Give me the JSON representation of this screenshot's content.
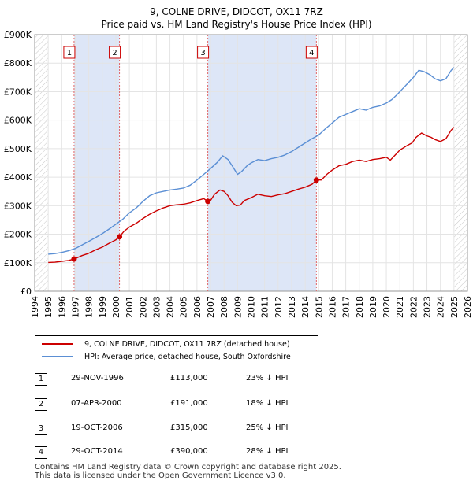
{
  "chart_data": {
    "type": "line",
    "title": "9, COLNE DRIVE, DIDCOT, OX11 7RZ",
    "subtitle": "Price paid vs. HM Land Registry's House Price Index (HPI)",
    "xlabel": "",
    "ylabel": "",
    "xlim": [
      1994,
      2026
    ],
    "ylim": [
      0,
      900000
    ],
    "x_ticks": [
      "1994",
      "1995",
      "1996",
      "1997",
      "1998",
      "1999",
      "2000",
      "2001",
      "2002",
      "2003",
      "2004",
      "2005",
      "2006",
      "2007",
      "2008",
      "2009",
      "2010",
      "2011",
      "2012",
      "2013",
      "2014",
      "2015",
      "2016",
      "2017",
      "2018",
      "2019",
      "2020",
      "2021",
      "2022",
      "2023",
      "2024",
      "2025",
      "2026"
    ],
    "y_ticks": [
      {
        "value": 0,
        "label": "£0"
      },
      {
        "value": 100000,
        "label": "£100K"
      },
      {
        "value": 200000,
        "label": "£200K"
      },
      {
        "value": 300000,
        "label": "£300K"
      },
      {
        "value": 400000,
        "label": "£400K"
      },
      {
        "value": 500000,
        "label": "£500K"
      },
      {
        "value": 600000,
        "label": "£600K"
      },
      {
        "value": 700000,
        "label": "£700K"
      },
      {
        "value": 800000,
        "label": "£800K"
      },
      {
        "value": 900000,
        "label": "£900K"
      }
    ],
    "shaded_ranges": [
      [
        1996.91,
        2000.27
      ],
      [
        2006.8,
        2014.83
      ]
    ],
    "hatched_ranges": [
      [
        1994,
        1995.0
      ],
      [
        2025.0,
        2026
      ]
    ],
    "series": [
      {
        "name": "9, COLNE DRIVE, DIDCOT, OX11 7RZ (detached house)",
        "color": "#cc0000",
        "x": [
          1995.0,
          1995.5,
          1996.0,
          1996.5,
          1996.91,
          1997.5,
          1998.0,
          1998.5,
          1999.0,
          1999.5,
          2000.0,
          2000.27,
          2000.6,
          2001.0,
          2001.5,
          2002.0,
          2002.5,
          2003.0,
          2003.5,
          2004.0,
          2004.5,
          2005.0,
          2005.5,
          2006.0,
          2006.5,
          2006.8,
          2007.0,
          2007.3,
          2007.7,
          2008.0,
          2008.3,
          2008.6,
          2008.9,
          2009.2,
          2009.5,
          2010.0,
          2010.5,
          2011.0,
          2011.5,
          2012.0,
          2012.5,
          2013.0,
          2013.5,
          2014.0,
          2014.5,
          2014.83,
          2015.2,
          2015.6,
          2016.0,
          2016.5,
          2017.0,
          2017.5,
          2018.0,
          2018.5,
          2019.0,
          2019.5,
          2020.0,
          2020.3,
          2020.7,
          2021.0,
          2021.5,
          2021.9,
          2022.2,
          2022.6,
          2023.0,
          2023.3,
          2023.6,
          2024.0,
          2024.4,
          2024.8,
          2025.0
        ],
        "values": [
          101000,
          102000,
          105000,
          108000,
          113000,
          125000,
          133000,
          145000,
          155000,
          168000,
          180000,
          191000,
          210000,
          225000,
          238000,
          255000,
          270000,
          282000,
          292000,
          300000,
          303000,
          305000,
          310000,
          318000,
          325000,
          315000,
          318000,
          340000,
          355000,
          350000,
          335000,
          312000,
          300000,
          302000,
          318000,
          328000,
          340000,
          335000,
          332000,
          338000,
          342000,
          350000,
          358000,
          365000,
          375000,
          390000,
          390000,
          410000,
          425000,
          440000,
          445000,
          455000,
          460000,
          455000,
          462000,
          465000,
          470000,
          460000,
          480000,
          495000,
          510000,
          520000,
          540000,
          555000,
          545000,
          540000,
          532000,
          525000,
          535000,
          565000,
          575000
        ]
      },
      {
        "name": "HPI: Average price, detached house, South Oxfordshire",
        "color": "#5b8fd4",
        "x": [
          1995.0,
          1995.5,
          1996.0,
          1996.5,
          1997.0,
          1997.5,
          1998.0,
          1998.5,
          1999.0,
          1999.5,
          2000.0,
          2000.5,
          2001.0,
          2001.5,
          2002.0,
          2002.5,
          2003.0,
          2003.5,
          2004.0,
          2004.5,
          2005.0,
          2005.5,
          2006.0,
          2006.5,
          2007.0,
          2007.5,
          2007.9,
          2008.3,
          2008.6,
          2009.0,
          2009.3,
          2009.7,
          2010.0,
          2010.5,
          2011.0,
          2011.5,
          2012.0,
          2012.5,
          2013.0,
          2013.5,
          2014.0,
          2014.5,
          2015.0,
          2015.5,
          2016.0,
          2016.5,
          2017.0,
          2017.5,
          2018.0,
          2018.5,
          2019.0,
          2019.5,
          2020.0,
          2020.4,
          2020.8,
          2021.2,
          2021.6,
          2022.0,
          2022.4,
          2022.8,
          2023.2,
          2023.6,
          2024.0,
          2024.4,
          2024.8,
          2025.0
        ],
        "values": [
          130000,
          132000,
          136000,
          142000,
          150000,
          162000,
          175000,
          188000,
          202000,
          218000,
          235000,
          252000,
          275000,
          292000,
          315000,
          335000,
          345000,
          350000,
          355000,
          358000,
          362000,
          372000,
          390000,
          410000,
          430000,
          452000,
          475000,
          462000,
          440000,
          410000,
          420000,
          440000,
          450000,
          462000,
          458000,
          465000,
          470000,
          478000,
          490000,
          505000,
          520000,
          535000,
          548000,
          570000,
          590000,
          610000,
          620000,
          630000,
          640000,
          635000,
          645000,
          650000,
          660000,
          672000,
          690000,
          710000,
          730000,
          750000,
          775000,
          770000,
          760000,
          745000,
          738000,
          745000,
          775000,
          785000
        ]
      }
    ],
    "annotations": [
      {
        "id": "1",
        "x": 1996.91,
        "value": 113000
      },
      {
        "id": "2",
        "x": 2000.27,
        "value": 191000
      },
      {
        "id": "3",
        "x": 2006.8,
        "value": 315000
      },
      {
        "id": "4",
        "x": 2014.83,
        "value": 390000
      }
    ]
  },
  "legend": {
    "items": [
      {
        "label": "9, COLNE DRIVE, DIDCOT, OX11 7RZ (detached house)",
        "color": "#cc0000"
      },
      {
        "label": "HPI: Average price, detached house, South Oxfordshire",
        "color": "#5b8fd4"
      }
    ]
  },
  "transactions": [
    {
      "num": "1",
      "date": "29-NOV-1996",
      "price": "£113,000",
      "hpi": "23% ↓ HPI"
    },
    {
      "num": "2",
      "date": "07-APR-2000",
      "price": "£191,000",
      "hpi": "18% ↓ HPI"
    },
    {
      "num": "3",
      "date": "19-OCT-2006",
      "price": "£315,000",
      "hpi": "25% ↓ HPI"
    },
    {
      "num": "4",
      "date": "29-OCT-2014",
      "price": "£390,000",
      "hpi": "28% ↓ HPI"
    }
  ],
  "footer": {
    "line1": "Contains HM Land Registry data © Crown copyright and database right 2025.",
    "line2": "This data is licensed under the Open Government Licence v3.0."
  }
}
